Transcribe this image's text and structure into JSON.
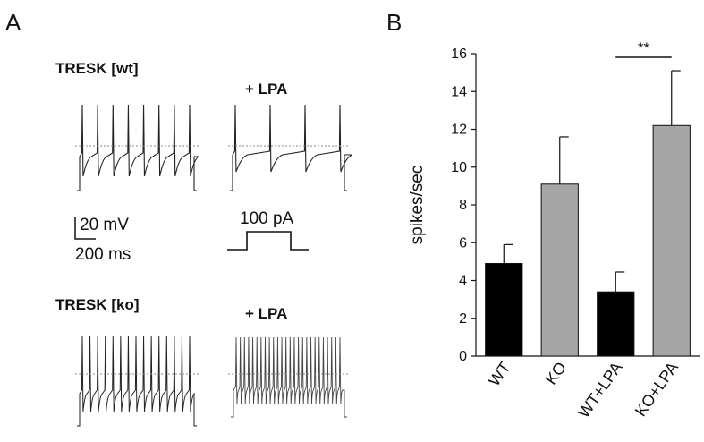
{
  "panel_a": {
    "letter": "A",
    "title_wt": "TRESK [wt]",
    "title_wt_lpa": "+ LPA",
    "title_ko": "TRESK [ko]",
    "title_ko_lpa": "+ LPA",
    "scale_voltage": "20 mV",
    "scale_time": "200 ms",
    "stimulus_label": "100 pA",
    "spike_counts": {
      "wt": 8,
      "wt_lpa": 4,
      "ko": 15,
      "ko_lpa": 26
    }
  },
  "panel_b": {
    "letter": "B"
  },
  "chart_data": {
    "type": "bar",
    "categories": [
      "WT",
      "KO",
      "WT+LPA",
      "KO+LPA"
    ],
    "values": [
      4.9,
      9.1,
      3.4,
      12.2
    ],
    "errors": [
      1.0,
      2.5,
      1.05,
      2.9
    ],
    "colors": [
      "#000000",
      "#a6a6a6",
      "#000000",
      "#a6a6a6"
    ],
    "ylabel": "spikes/sec",
    "ylim": [
      0,
      16
    ],
    "yticks": [
      0,
      2,
      4,
      6,
      8,
      10,
      12,
      14,
      16
    ],
    "significance": {
      "label": "**",
      "between": [
        "WT+LPA",
        "KO+LPA"
      ]
    }
  }
}
